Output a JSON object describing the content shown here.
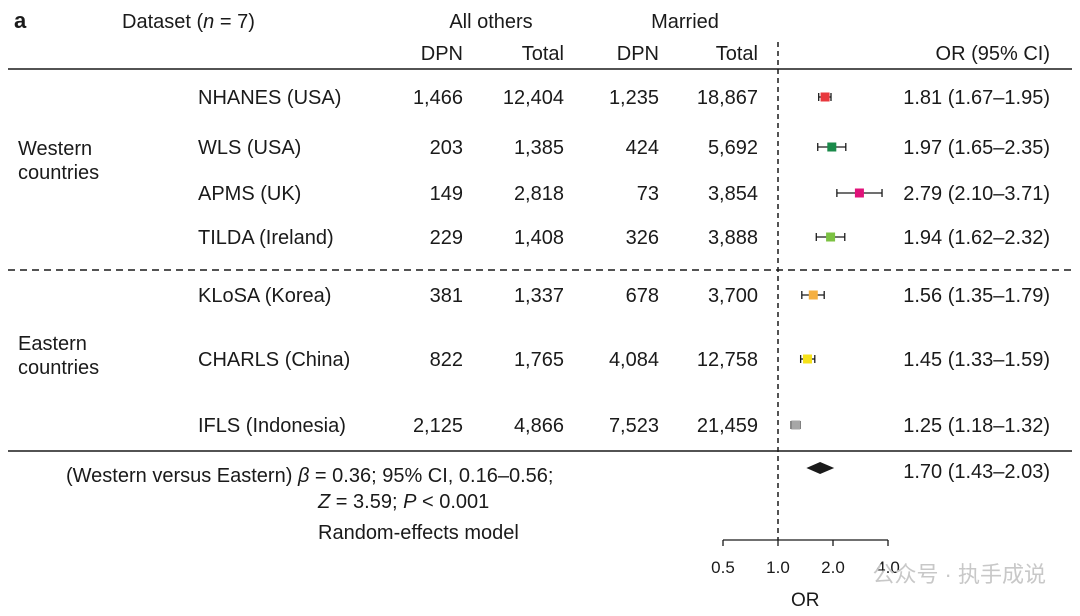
{
  "panel_label": "a",
  "header": {
    "dataset_prefix": "Dataset (",
    "dataset_n_var": "n",
    "dataset_suffix": " = 7)",
    "group_all_others": "All others",
    "group_married": "Married",
    "col_dpn": "DPN",
    "col_total": "Total",
    "col_or": "OR (95% CI)"
  },
  "chart_data": {
    "type": "forest",
    "x_label": "OR",
    "x_scale": "log",
    "x_ticks": [
      "0.5",
      "1.0",
      "2.0",
      "4.0"
    ],
    "reference_line": 1.0,
    "groups": [
      {
        "name": "Western countries",
        "name_lines": [
          "Western",
          "countries"
        ],
        "rows": [
          {
            "study": "NHANES (USA)",
            "others_dpn": "1,466",
            "others_total": "12,404",
            "married_dpn": "1,235",
            "married_total": "18,867",
            "or": 1.81,
            "lo": 1.67,
            "hi": 1.95,
            "or_text": "1.81 (1.67–1.95)",
            "color": "#e8383d"
          },
          {
            "study": "WLS (USA)",
            "others_dpn": "203",
            "others_total": "1,385",
            "married_dpn": "424",
            "married_total": "5,692",
            "or": 1.97,
            "lo": 1.65,
            "hi": 2.35,
            "or_text": "1.97 (1.65–2.35)",
            "color": "#1a8a4a"
          },
          {
            "study": "APMS (UK)",
            "others_dpn": "149",
            "others_total": "2,818",
            "married_dpn": "73",
            "married_total": "3,854",
            "or": 2.79,
            "lo": 2.1,
            "hi": 3.71,
            "or_text": "2.79 (2.10–3.71)",
            "color": "#e0137a"
          },
          {
            "study": "TILDA (Ireland)",
            "others_dpn": "229",
            "others_total": "1,408",
            "married_dpn": "326",
            "married_total": "3,888",
            "or": 1.94,
            "lo": 1.62,
            "hi": 2.32,
            "or_text": "1.94 (1.62–2.32)",
            "color": "#7cc242"
          }
        ]
      },
      {
        "name": "Eastern countries",
        "name_lines": [
          "Eastern",
          "countries"
        ],
        "rows": [
          {
            "study": "KLoSA (Korea)",
            "others_dpn": "381",
            "others_total": "1,337",
            "married_dpn": "678",
            "married_total": "3,700",
            "or": 1.56,
            "lo": 1.35,
            "hi": 1.79,
            "or_text": "1.56 (1.35–1.79)",
            "color": "#f5b041"
          },
          {
            "study": "CHARLS (China)",
            "others_dpn": "822",
            "others_total": "1,765",
            "married_dpn": "4,084",
            "married_total": "12,758",
            "or": 1.45,
            "lo": 1.33,
            "hi": 1.59,
            "or_text": "1.45 (1.33–1.59)",
            "color": "#f5e11a"
          },
          {
            "study": "IFLS (Indonesia)",
            "others_dpn": "2,125",
            "others_total": "4,866",
            "married_dpn": "7,523",
            "married_total": "21,459",
            "or": 1.25,
            "lo": 1.18,
            "hi": 1.32,
            "or_text": "1.25 (1.18–1.32)",
            "color": "#a6a6a6"
          }
        ]
      }
    ],
    "pooled": {
      "or": 1.7,
      "lo": 1.43,
      "hi": 2.03,
      "or_text": "1.70 (1.43–2.03)",
      "comparison": "(Western versus Eastern)",
      "beta_symbol": "β",
      "beta_text": " = 0.36; 95% CI, 0.16–0.56;",
      "z_symbol": "Z",
      "z_text": " = 3.59; ",
      "p_symbol": "P",
      "p_text": " < 0.001",
      "model": "Random-effects model"
    }
  },
  "watermark": "公众号 · 执手成说",
  "colors": {
    "text": "#1a1a1a",
    "line": "#1a1a1a",
    "watermark": "#c8c8c8"
  }
}
